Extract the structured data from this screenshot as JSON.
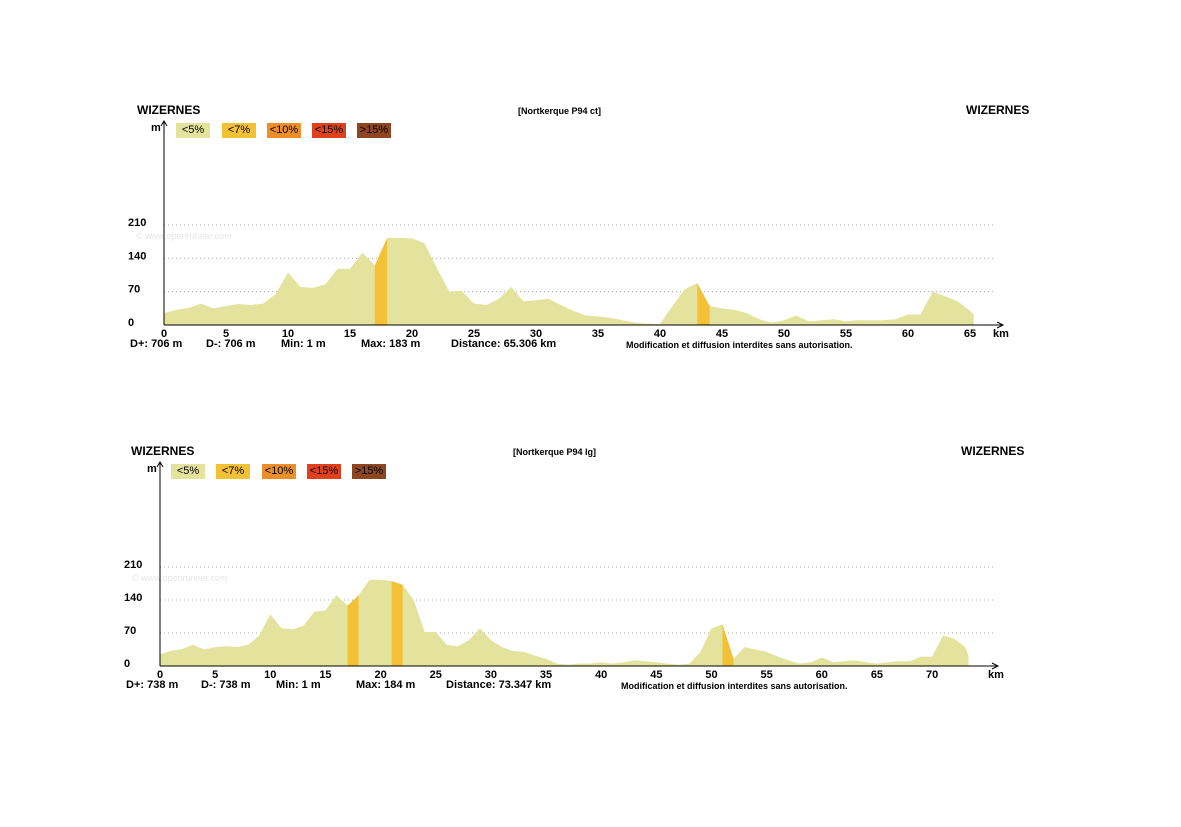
{
  "colors": {
    "lt5": "#e4e39d",
    "lt7": "#f2c135",
    "lt10": "#ec8f28",
    "lt15": "#e0411d",
    "gt15": "#8d4621",
    "grid": "#aaaaaa",
    "axis": "#000000"
  },
  "legend": [
    "<5%",
    "<7%",
    "<10%",
    "<15%",
    ">15%"
  ],
  "watermark": "© www.openrunner.com",
  "chart_data": [
    {
      "type": "area",
      "title": "[Nortkerque P94 ct]",
      "start_label": "WIZERNES",
      "end_label": "WIZERNES",
      "ylabel": "m",
      "xlabel": "km",
      "ylim": [
        0,
        210
      ],
      "yticks": [
        0,
        70,
        140,
        210
      ],
      "xlim": [
        0,
        67
      ],
      "xticks": [
        0,
        5,
        10,
        15,
        20,
        25,
        30,
        35,
        40,
        45,
        50,
        55,
        60,
        65
      ],
      "x": [
        0,
        1,
        2,
        3,
        4,
        5,
        6,
        7,
        8,
        9,
        10,
        11,
        12,
        13,
        14,
        15,
        16,
        17,
        18,
        19,
        20,
        21,
        22,
        23,
        24,
        25,
        26,
        27,
        28,
        29,
        30,
        31,
        32,
        33,
        34,
        35,
        36,
        37,
        38,
        39,
        40,
        41,
        42,
        43,
        44,
        45,
        46,
        47,
        48,
        49,
        50,
        51,
        52,
        53,
        54,
        55,
        56,
        57,
        58,
        59,
        60,
        61,
        62,
        63,
        64,
        65,
        65.3
      ],
      "y": [
        25,
        32,
        36,
        45,
        35,
        40,
        44,
        42,
        45,
        65,
        110,
        80,
        78,
        85,
        118,
        118,
        152,
        125,
        183,
        183,
        182,
        172,
        120,
        70,
        72,
        45,
        42,
        55,
        80,
        50,
        52,
        55,
        42,
        30,
        20,
        18,
        15,
        10,
        5,
        3,
        2,
        40,
        75,
        88,
        40,
        35,
        32,
        25,
        12,
        5,
        10,
        20,
        8,
        10,
        12,
        8,
        10,
        10,
        10,
        12,
        22,
        22,
        70,
        60,
        50,
        30,
        22
      ],
      "steep_segments": [
        {
          "x": [
            17,
            18
          ],
          "grade": "<7%"
        },
        {
          "x": [
            43,
            44
          ],
          "grade": "<7%"
        }
      ],
      "stats": {
        "d_plus": "D+: 706  m",
        "d_minus": "D-: 706  m",
        "min": "Min: 1  m",
        "max": "Max: 183  m",
        "distance": "Distance: 65.306  km"
      },
      "notice": "Modification et diffusion interdites sans autorisation."
    },
    {
      "type": "area",
      "title": "[Nortkerque P94 lg]",
      "start_label": "WIZERNES",
      "end_label": "WIZERNES",
      "ylabel": "m",
      "xlabel": "km",
      "ylim": [
        0,
        210
      ],
      "yticks": [
        0,
        70,
        140,
        210
      ],
      "xlim": [
        0,
        75
      ],
      "xticks": [
        0,
        5,
        10,
        15,
        20,
        25,
        30,
        35,
        40,
        45,
        50,
        55,
        60,
        65,
        70
      ],
      "x": [
        0,
        1,
        2,
        3,
        4,
        5,
        6,
        7,
        8,
        9,
        10,
        11,
        12,
        13,
        14,
        15,
        16,
        17,
        18,
        19,
        20,
        21,
        22,
        23,
        24,
        25,
        26,
        27,
        28,
        29,
        30,
        31,
        32,
        33,
        34,
        35,
        36,
        37,
        38,
        39,
        40,
        41,
        42,
        43,
        44,
        45,
        46,
        47,
        48,
        49,
        50,
        51,
        52,
        53,
        54,
        55,
        56,
        57,
        58,
        59,
        60,
        61,
        62,
        63,
        64,
        65,
        66,
        67,
        68,
        69,
        70,
        71,
        72,
        73,
        73.3
      ],
      "y": [
        25,
        32,
        36,
        45,
        35,
        40,
        42,
        40,
        45,
        65,
        110,
        80,
        78,
        85,
        115,
        118,
        150,
        128,
        150,
        183,
        183,
        180,
        172,
        140,
        72,
        72,
        45,
        42,
        55,
        80,
        55,
        40,
        32,
        30,
        22,
        15,
        5,
        3,
        5,
        5,
        8,
        5,
        8,
        12,
        10,
        8,
        5,
        3,
        5,
        30,
        80,
        88,
        15,
        40,
        35,
        30,
        20,
        12,
        5,
        8,
        18,
        8,
        10,
        12,
        8,
        5,
        8,
        10,
        10,
        20,
        20,
        65,
        58,
        40,
        22
      ],
      "steep_segments": [
        {
          "x": [
            17,
            18
          ],
          "grade": "<7%"
        },
        {
          "x": [
            21,
            22
          ],
          "grade": "<7%"
        },
        {
          "x": [
            51,
            52
          ],
          "grade": "<7%"
        }
      ],
      "stats": {
        "d_plus": "D+: 738  m",
        "d_minus": "D-: 738  m",
        "min": "Min: 1  m",
        "max": "Max: 184  m",
        "distance": "Distance: 73.347  km"
      },
      "notice": "Modification et diffusion interdites sans autorisation."
    }
  ]
}
